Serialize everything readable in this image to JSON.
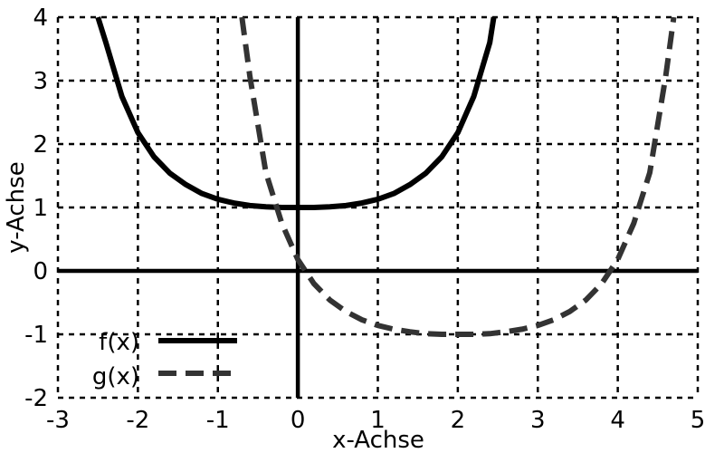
{
  "chart_data": {
    "type": "line",
    "xlabel": "x-Achse",
    "ylabel": "y-Achse",
    "xlim": [
      -3,
      5
    ],
    "ylim": [
      -2,
      4
    ],
    "x_ticks": [
      -3,
      -2,
      -1,
      0,
      1,
      2,
      3,
      4,
      5
    ],
    "y_ticks": [
      -2,
      -1,
      0,
      1,
      2,
      3,
      4
    ],
    "x_tick_labels": [
      "-3",
      "-2",
      "-1",
      "0",
      "1",
      "2",
      "3",
      "4",
      "5"
    ],
    "y_tick_labels": [
      "-2",
      "-1",
      "0",
      "1",
      "2",
      "3",
      "4"
    ],
    "grid": true,
    "grid_style": "dashed",
    "legend_position": "bottom-left",
    "series": [
      {
        "name": "f(x)",
        "style": "solid",
        "color": "#000000",
        "x": [
          -2.5,
          -2.4,
          -2.2,
          -2.0,
          -1.8,
          -1.6,
          -1.4,
          -1.2,
          -1.0,
          -0.8,
          -0.6,
          -0.4,
          -0.2,
          0.0,
          0.2,
          0.4,
          0.6,
          0.8,
          1.0,
          1.2,
          1.4,
          1.6,
          1.8,
          2.0,
          2.2,
          2.4,
          2.45
        ],
        "y": [
          4.0,
          3.6,
          2.75,
          2.18,
          1.8,
          1.54,
          1.36,
          1.22,
          1.13,
          1.07,
          1.03,
          1.01,
          1.0,
          1.0,
          1.0,
          1.01,
          1.03,
          1.07,
          1.13,
          1.22,
          1.36,
          1.54,
          1.8,
          2.18,
          2.75,
          3.6,
          4.0
        ]
      },
      {
        "name": "g(x)",
        "style": "dashed",
        "color": "#333333",
        "x": [
          -0.7,
          -0.6,
          -0.4,
          -0.2,
          0.0,
          0.2,
          0.4,
          0.6,
          0.8,
          1.0,
          1.2,
          1.4,
          1.6,
          1.8,
          2.0,
          2.2,
          2.4,
          2.6,
          2.8,
          3.0,
          3.2,
          3.4,
          3.6,
          3.8,
          4.0,
          4.2,
          4.4,
          4.6,
          4.7
        ],
        "y": [
          4.0,
          3.07,
          1.55,
          0.75,
          0.18,
          -0.2,
          -0.46,
          -0.64,
          -0.77,
          -0.86,
          -0.92,
          -0.96,
          -0.99,
          -1.0,
          -1.0,
          -1.0,
          -0.99,
          -0.96,
          -0.92,
          -0.86,
          -0.77,
          -0.64,
          -0.46,
          -0.2,
          0.18,
          0.75,
          1.55,
          3.07,
          4.0
        ]
      }
    ]
  }
}
